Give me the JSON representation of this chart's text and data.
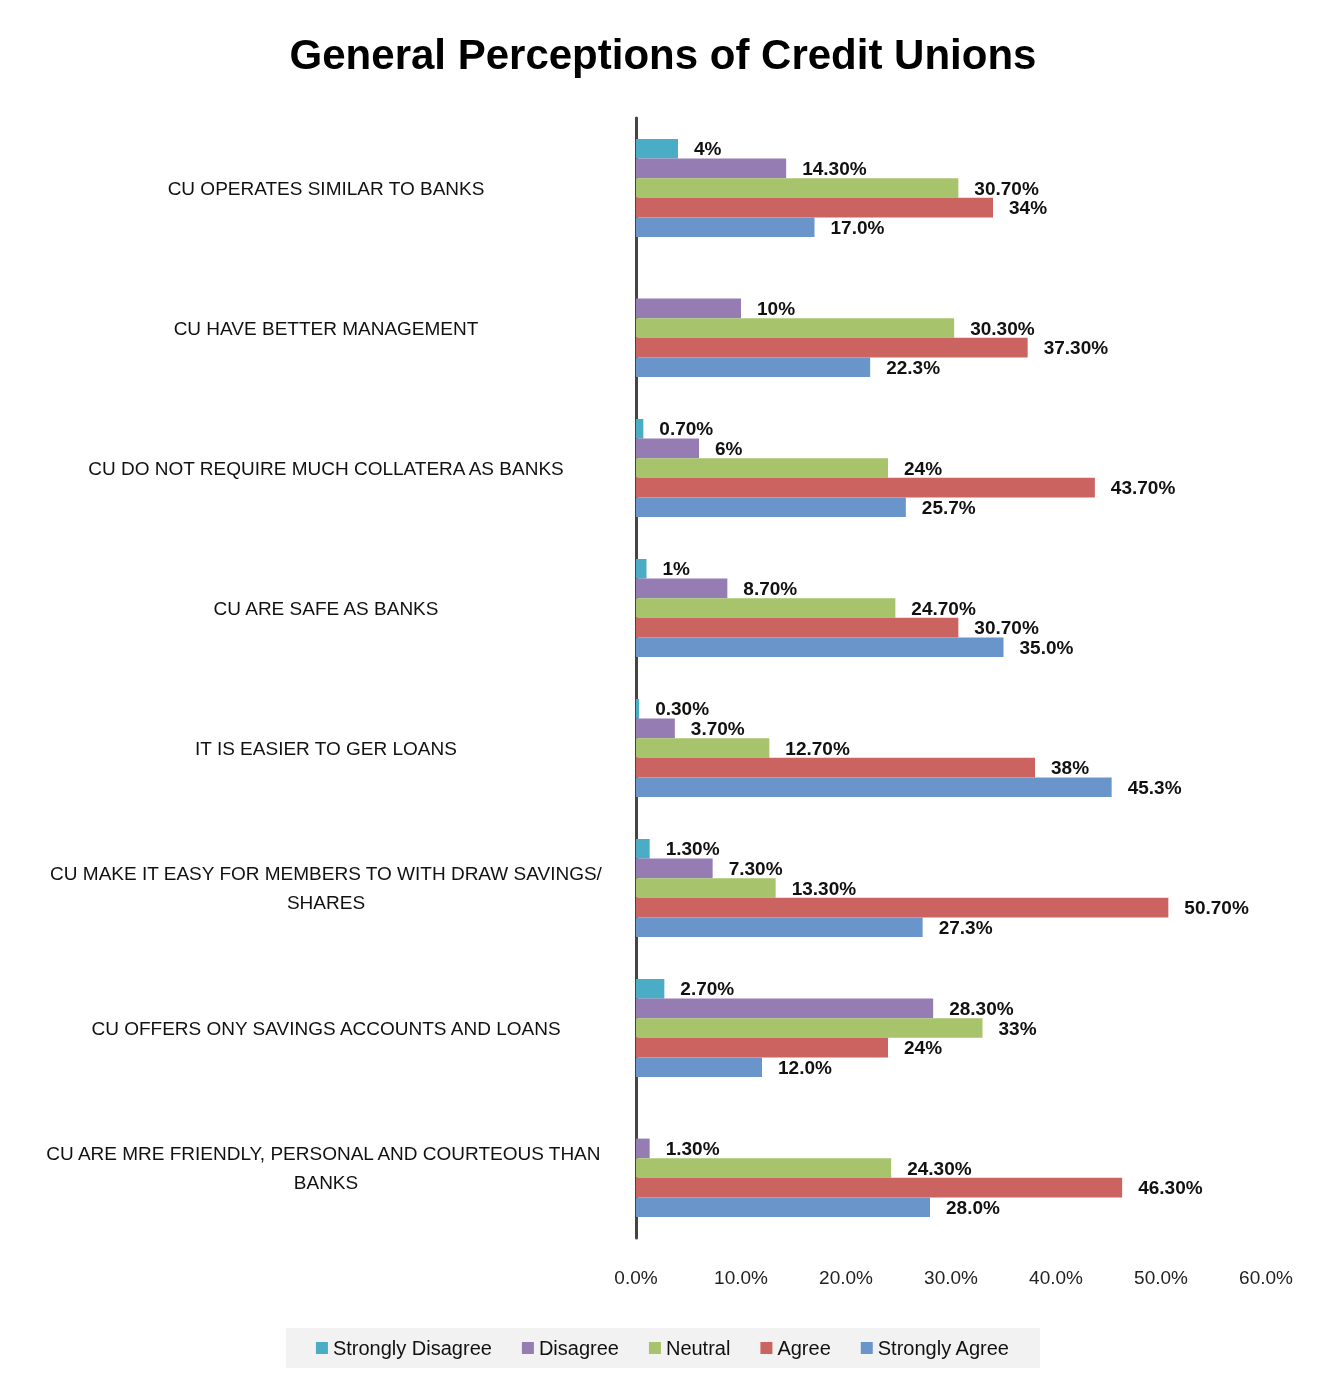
{
  "chart_data": {
    "type": "bar",
    "orientation": "horizontal",
    "title": "General Perceptions of Credit Unions",
    "categories": [
      "CU OPERATES SIMILAR TO BANKS",
      "CU HAVE BETTER MANAGEMENT",
      "CU DO NOT REQUIRE MUCH COLLATERA AS BANKS",
      "CU ARE SAFE AS BANKS",
      "IT IS EASIER TO GER LOANS",
      "CU MAKE IT EASY FOR MEMBERS TO WITH DRAW SAVINGS/SHARES",
      "CU OFFERS ONY SAVINGS ACCOUNTS AND LOANS",
      "CU ARE MRE FRIENDLY, PERSONAL AND COURTEOUS THAN BANKS"
    ],
    "series": [
      {
        "name": "Strongly Disagree",
        "color": "#4bacc6",
        "values": [
          4,
          null,
          0.7,
          1,
          0.3,
          1.3,
          2.7,
          null
        ],
        "value_labels": [
          "4%",
          null,
          "0.70%",
          "1%",
          "0.30%",
          "1.30%",
          "2.70%",
          null
        ]
      },
      {
        "name": "Disagree",
        "color": "#957cb3",
        "values": [
          14.3,
          10,
          6,
          8.7,
          3.7,
          7.3,
          28.3,
          1.3
        ],
        "value_labels": [
          "14.30%",
          "10%",
          "6%",
          "8.70%",
          "3.70%",
          "7.30%",
          "28.30%",
          "1.30%"
        ]
      },
      {
        "name": "Neutral",
        "color": "#a7c36b",
        "values": [
          30.7,
          30.3,
          24,
          24.7,
          12.7,
          13.3,
          33,
          24.3
        ],
        "value_labels": [
          "30.70%",
          "30.30%",
          "24%",
          "24.70%",
          "12.70%",
          "13.30%",
          "33%",
          "24.30%"
        ]
      },
      {
        "name": "Agree",
        "color": "#cb6461",
        "values": [
          34,
          37.3,
          43.7,
          30.7,
          38,
          50.7,
          24,
          46.3
        ],
        "value_labels": [
          "34%",
          "37.30%",
          "43.70%",
          "30.70%",
          "38%",
          "50.70%",
          "24%",
          "46.30%"
        ]
      },
      {
        "name": "Strongly Agree",
        "color": "#6a95ca",
        "values": [
          17.0,
          22.3,
          25.7,
          35.0,
          45.3,
          27.3,
          12.0,
          28.0
        ],
        "value_labels": [
          "17.0%",
          "22.3%",
          "25.7%",
          "35.0%",
          "45.3%",
          "27.3%",
          "12.0%",
          "28.0%"
        ]
      }
    ],
    "xlim": [
      0,
      60
    ],
    "xticks": [
      {
        "value": 0,
        "label": "0.0%"
      },
      {
        "value": 10,
        "label": "10.0%"
      },
      {
        "value": 20,
        "label": "20.0%"
      },
      {
        "value": 30,
        "label": "30.0%"
      },
      {
        "value": 40,
        "label": "40.0%"
      },
      {
        "value": 50,
        "label": "50.0%"
      },
      {
        "value": 60,
        "label": "60.0%"
      }
    ],
    "legend": "bottom",
    "grid": false
  }
}
